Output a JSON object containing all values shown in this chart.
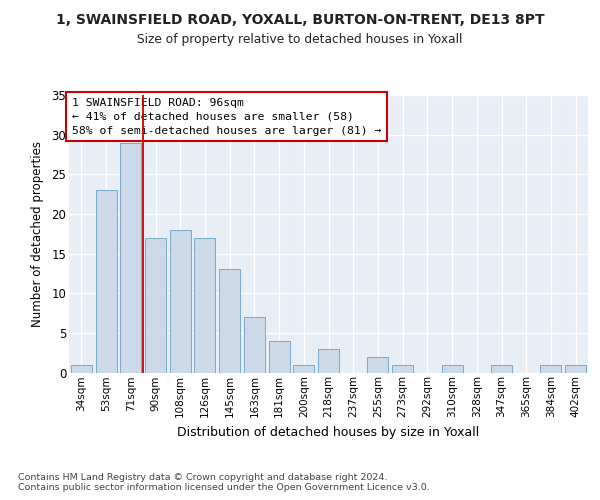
{
  "title1": "1, SWAINSFIELD ROAD, YOXALL, BURTON-ON-TRENT, DE13 8PT",
  "title2": "Size of property relative to detached houses in Yoxall",
  "xlabel": "Distribution of detached houses by size in Yoxall",
  "ylabel": "Number of detached properties",
  "categories": [
    "34sqm",
    "53sqm",
    "71sqm",
    "90sqm",
    "108sqm",
    "126sqm",
    "145sqm",
    "163sqm",
    "181sqm",
    "200sqm",
    "218sqm",
    "237sqm",
    "255sqm",
    "273sqm",
    "292sqm",
    "310sqm",
    "328sqm",
    "347sqm",
    "365sqm",
    "384sqm",
    "402sqm"
  ],
  "values": [
    1,
    23,
    29,
    17,
    18,
    17,
    13,
    7,
    4,
    1,
    3,
    0,
    2,
    1,
    0,
    1,
    0,
    1,
    0,
    1,
    1
  ],
  "bar_color": "#ccd9e8",
  "bar_edge_color": "#7aaaca",
  "vline_x": 3.0,
  "vline_color": "#cc0000",
  "annotation_text": "1 SWAINSFIELD ROAD: 96sqm\n← 41% of detached houses are smaller (58)\n58% of semi-detached houses are larger (81) →",
  "annotation_box_color": "white",
  "annotation_box_edge": "#cc0000",
  "ylim": [
    0,
    35
  ],
  "yticks": [
    0,
    5,
    10,
    15,
    20,
    25,
    30,
    35
  ],
  "footer": "Contains HM Land Registry data © Crown copyright and database right 2024.\nContains public sector information licensed under the Open Government Licence v3.0.",
  "bg_color": "#ffffff",
  "plot_bg_color": "#e8eef5",
  "grid_color": "#ffffff"
}
